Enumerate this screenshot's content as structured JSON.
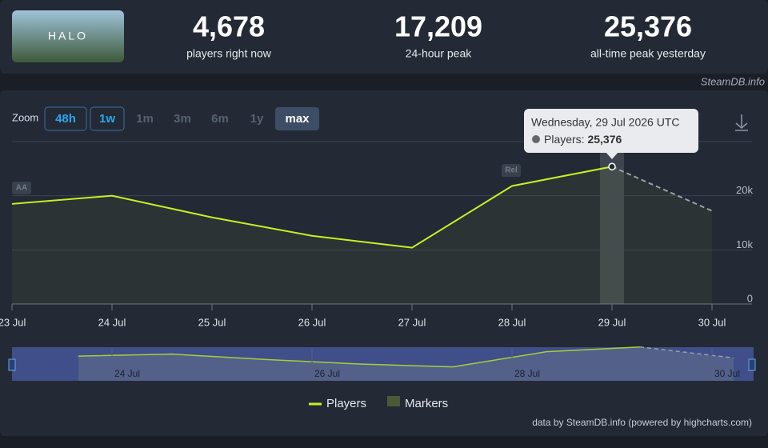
{
  "header": {
    "thumbnail_text": "HALO",
    "stats": [
      {
        "value": "4,678",
        "label": "players right now"
      },
      {
        "value": "17,209",
        "label": "24-hour peak"
      },
      {
        "value": "25,376",
        "label": "all-time peak yesterday"
      }
    ],
    "watermark": "SteamDB.info"
  },
  "zoom": {
    "label": "Zoom",
    "buttons": [
      "48h",
      "1w",
      "1m",
      "3m",
      "6m",
      "1y",
      "max"
    ]
  },
  "chart_data": {
    "type": "line",
    "categories": [
      "23 Jul",
      "24 Jul",
      "25 Jul",
      "26 Jul",
      "27 Jul",
      "28 Jul",
      "29 Jul",
      "30 Jul"
    ],
    "series": [
      {
        "name": "Players",
        "color": "#c8f024",
        "values": [
          18500,
          20000,
          16000,
          12600,
          10400,
          21800,
          25376,
          17200
        ]
      }
    ],
    "ylim": [
      0,
      30000
    ],
    "yticks": [
      {
        "value": 0,
        "label": "0"
      },
      {
        "value": 10000,
        "label": "10k"
      },
      {
        "value": 20000,
        "label": "20k"
      }
    ],
    "grid": true,
    "markers": [
      {
        "label": "AA",
        "category": "23 Jul"
      },
      {
        "label": "Rel",
        "category": "28 Jul"
      }
    ],
    "legend": [
      "Players",
      "Markers"
    ],
    "tooltip": {
      "title": "Wednesday, 29 Jul 2026 UTC",
      "label": "Players:",
      "value": "25,376"
    },
    "credits": "data by SteamDB.info (powered by highcharts.com)"
  }
}
